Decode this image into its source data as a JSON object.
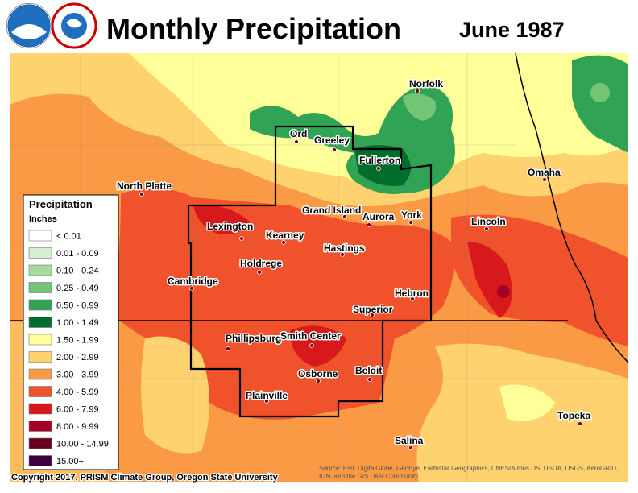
{
  "header": {
    "title": "Monthly Precipitation",
    "date": "June 1987"
  },
  "legend": {
    "title": "Precipitation",
    "units": "Inches",
    "entries": [
      {
        "label": "< 0.01",
        "color": "#ffffff"
      },
      {
        "label": "0.01 - 0.09",
        "color": "#d3efcf"
      },
      {
        "label": "0.10 - 0.24",
        "color": "#a6dba0"
      },
      {
        "label": "0.25 - 0.49",
        "color": "#74c476"
      },
      {
        "label": "0.50 - 0.99",
        "color": "#31a354"
      },
      {
        "label": "1.00 - 1.49",
        "color": "#006d2c"
      },
      {
        "label": "1.50 - 1.99",
        "color": "#ffff99"
      },
      {
        "label": "2.00 - 2.99",
        "color": "#fed26e"
      },
      {
        "label": "3.00 - 3.99",
        "color": "#fb9a45"
      },
      {
        "label": "4.00 - 5.99",
        "color": "#f0522b"
      },
      {
        "label": "6.00 - 7.99",
        "color": "#d7191c"
      },
      {
        "label": "8.00 - 9.99",
        "color": "#a50026"
      },
      {
        "label": "10.00 - 14.99",
        "color": "#67001f"
      },
      {
        "label": "15.00+",
        "color": "#3a0040"
      }
    ]
  },
  "cities": [
    "Ord",
    "Greeley",
    "Norfolk",
    "Fullerton",
    "North Platte",
    "Omaha",
    "Grand Island",
    "Aurora",
    "York",
    "Lincoln",
    "Lexington",
    "Kearney",
    "Hastings",
    "Holdrege",
    "Cambridge",
    "Hebron",
    "Superior",
    "Phillipsburg",
    "Smith Center",
    "Osborne",
    "Beloit",
    "Plainville",
    "Topeka",
    "Salina"
  ],
  "footer": {
    "copyright": "Copyright 2017, PRISM Climate Group, Oregon State University",
    "source": [
      "Source: Esri, DigitalGlobe, GeoEye, Earthstar Geographics, CNES/Airbus DS, USDA, USGS, AeroGRID,",
      "IGN, and the GIS User Community"
    ]
  }
}
